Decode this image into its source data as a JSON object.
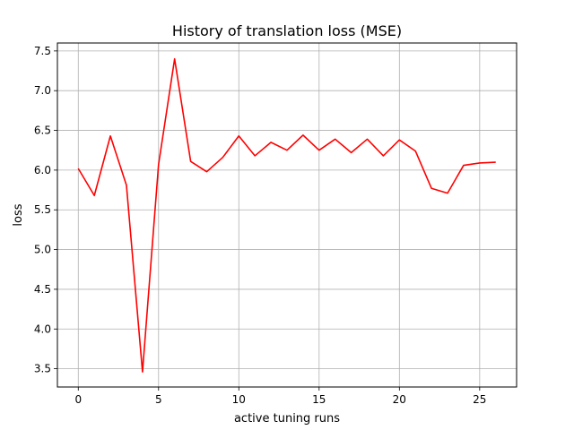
{
  "chart_data": {
    "type": "line",
    "title": "History of translation loss (MSE)",
    "xlabel": "active tuning runs",
    "ylabel": "loss",
    "xlim": [
      -1.3,
      27.3
    ],
    "ylim": [
      3.27,
      7.6
    ],
    "xticks": [
      0,
      5,
      10,
      15,
      20,
      25
    ],
    "yticks": [
      3.5,
      4.0,
      4.5,
      5.0,
      5.5,
      6.0,
      6.5,
      7.0,
      7.5
    ],
    "xtick_labels": [
      "0",
      "5",
      "10",
      "15",
      "20",
      "25"
    ],
    "ytick_labels": [
      "3.5",
      "4.0",
      "4.5",
      "5.0",
      "5.5",
      "6.0",
      "6.5",
      "7.0",
      "7.5"
    ],
    "grid": true,
    "series": [
      {
        "color": "#ff0000",
        "x": [
          0,
          1,
          2,
          3,
          4,
          5,
          6,
          7,
          8,
          9,
          10,
          11,
          12,
          13,
          14,
          15,
          16,
          17,
          18,
          19,
          20,
          21,
          22,
          23,
          24,
          25,
          26
        ],
        "y": [
          6.02,
          5.68,
          6.43,
          5.81,
          3.46,
          6.07,
          7.4,
          6.11,
          5.98,
          6.16,
          6.43,
          6.18,
          6.35,
          6.25,
          6.44,
          6.25,
          6.39,
          6.22,
          6.39,
          6.18,
          6.38,
          6.24,
          5.77,
          5.71,
          6.06,
          6.09,
          6.1
        ]
      }
    ]
  }
}
